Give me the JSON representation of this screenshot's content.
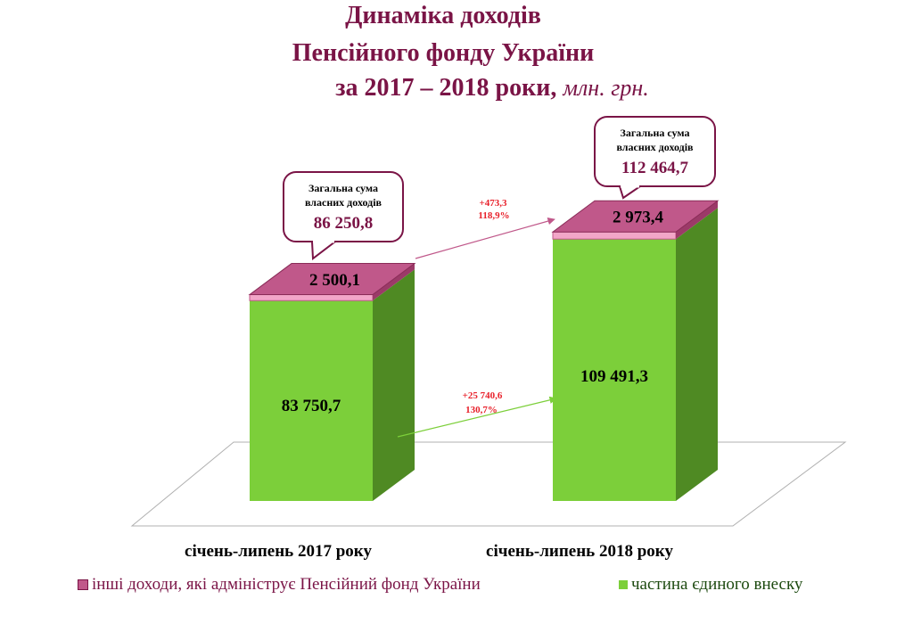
{
  "title": {
    "line1": "Динаміка доходів",
    "line2": "Пенсійного фонду України",
    "line3_main": "за 2017 – 2018 роки,",
    "line3_unit": "млн. грн."
  },
  "chart_data": {
    "type": "bar",
    "stacked": true,
    "three_d": true,
    "categories": [
      "січень-липень 2017 року",
      "січень-липень 2018 року"
    ],
    "series": [
      {
        "name": "частина єдиного внеску",
        "values": [
          83750.7,
          109491.3
        ],
        "labels": [
          "83 750,7",
          "109 491,3"
        ],
        "color": "#7ccf3a"
      },
      {
        "name": "інші доходи, які адмініструє Пенсійний фонд України",
        "values": [
          2500.1,
          2973.4
        ],
        "labels": [
          "2 500,1",
          "2 973,4"
        ],
        "color": "#c0588a"
      }
    ],
    "callouts": [
      {
        "heading": "Загальна сума власних доходів",
        "value": "86 250,8"
      },
      {
        "heading": "Загальна сума власних доходів",
        "value": "112 464,7"
      }
    ],
    "changes": [
      {
        "series": "інші доходи, які адмініструє Пенсійний фонд України",
        "delta": "+473,3",
        "percent": "118,9%"
      },
      {
        "series": "частина єдиного внеску",
        "delta": "+25 740,6",
        "percent": "130,7%"
      }
    ],
    "legend_position": "bottom"
  },
  "colors": {
    "title": "#7a1446",
    "green_front": "#7ccf3a",
    "green_side": "#4f8a23",
    "pink_top": "#c0588a",
    "delta_text": "#e8202a"
  }
}
